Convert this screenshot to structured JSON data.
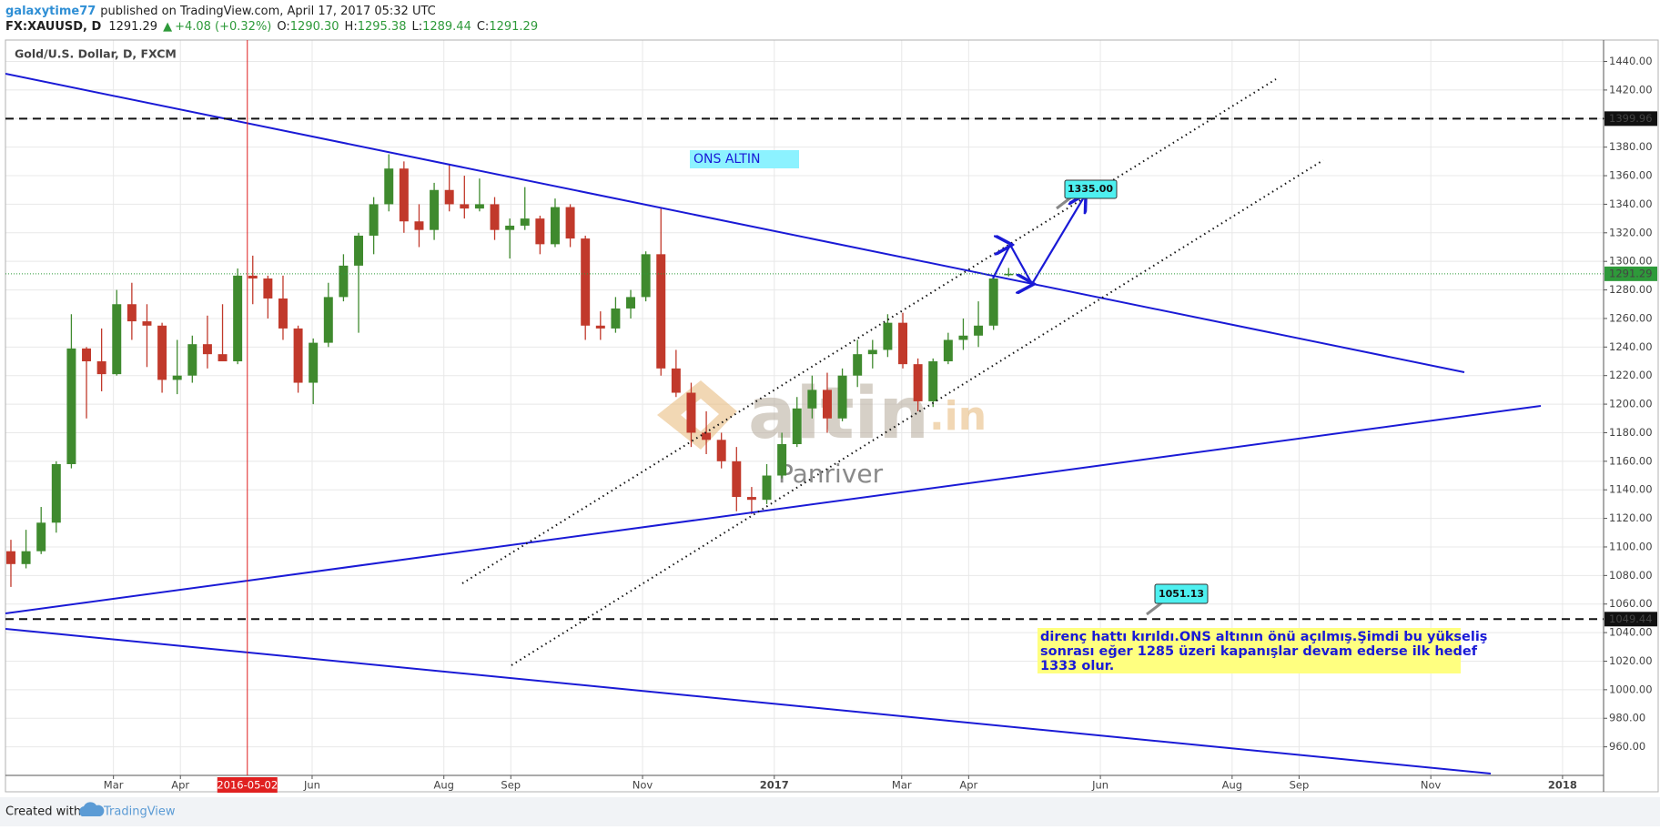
{
  "header": {
    "user": "galaxytime77",
    "published": "published on TradingView.com, April 17, 2017 05:32 UTC",
    "symbol": "FX:XAUUSD, D",
    "last": "1291.29",
    "arrow": "▲",
    "change": "+4.08 (+0.32%)",
    "ohlc": [
      {
        "key": "O:",
        "value": "1290.30"
      },
      {
        "key": "H:",
        "value": "1295.38"
      },
      {
        "key": "L:",
        "value": "1289.44"
      },
      {
        "key": "C:",
        "value": "1291.29"
      }
    ]
  },
  "chart_data": {
    "type": "candlestick",
    "title": "Gold/U.S. Dollar, D, FXCM",
    "x": [
      "2016-01-11",
      "2016-01-18",
      "2016-01-25",
      "2016-02-01",
      "2016-02-08",
      "2016-02-15",
      "2016-02-22",
      "2016-02-29",
      "2016-03-07",
      "2016-03-14",
      "2016-03-21",
      "2016-03-28",
      "2016-04-04",
      "2016-04-11",
      "2016-04-18",
      "2016-04-25",
      "2016-05-02",
      "2016-05-09",
      "2016-05-16",
      "2016-05-23",
      "2016-05-30",
      "2016-06-06",
      "2016-06-13",
      "2016-06-20",
      "2016-06-27",
      "2016-07-04",
      "2016-07-11",
      "2016-07-18",
      "2016-07-25",
      "2016-08-01",
      "2016-08-08",
      "2016-08-15",
      "2016-08-22",
      "2016-08-29",
      "2016-09-05",
      "2016-09-12",
      "2016-09-19",
      "2016-09-26",
      "2016-10-03",
      "2016-10-10",
      "2016-10-17",
      "2016-10-24",
      "2016-10-31",
      "2016-11-07",
      "2016-11-14",
      "2016-11-21",
      "2016-11-28",
      "2016-12-05",
      "2016-12-12",
      "2016-12-19",
      "2016-12-26",
      "2017-01-02",
      "2017-01-09",
      "2017-01-16",
      "2017-01-23",
      "2017-01-30",
      "2017-02-06",
      "2017-02-13",
      "2017-02-20",
      "2017-02-27",
      "2017-03-06",
      "2017-03-13",
      "2017-03-20",
      "2017-03-27",
      "2017-04-03",
      "2017-04-10",
      "2017-04-17"
    ],
    "open": [
      1097,
      1088,
      1097,
      1117,
      1158,
      1239,
      1230,
      1221,
      1270,
      1258,
      1255,
      1217,
      1220,
      1242,
      1235,
      1230,
      1290,
      1288,
      1274,
      1253,
      1215,
      1243,
      1275,
      1297,
      1318,
      1340,
      1365,
      1328,
      1322,
      1350,
      1340,
      1337,
      1340,
      1322,
      1325,
      1330,
      1312,
      1338,
      1316,
      1255,
      1253,
      1267,
      1275,
      1305,
      1225,
      1208,
      1180,
      1175,
      1160,
      1135,
      1133,
      1150,
      1172,
      1197,
      1210,
      1190,
      1220,
      1235,
      1238,
      1257,
      1228,
      1202,
      1230,
      1245,
      1248,
      1255,
      1290.3
    ],
    "high": [
      1105,
      1112,
      1128,
      1160,
      1263,
      1240,
      1253,
      1280,
      1285,
      1270,
      1257,
      1245,
      1248,
      1262,
      1270,
      1295,
      1304,
      1290,
      1290,
      1255,
      1246,
      1285,
      1305,
      1320,
      1345,
      1375,
      1370,
      1340,
      1355,
      1368,
      1360,
      1358,
      1345,
      1330,
      1352,
      1332,
      1344,
      1340,
      1318,
      1265,
      1275,
      1280,
      1307,
      1338,
      1238,
      1215,
      1195,
      1180,
      1170,
      1142,
      1158,
      1180,
      1205,
      1220,
      1222,
      1225,
      1245,
      1245,
      1263,
      1264,
      1232,
      1232,
      1250,
      1260,
      1272,
      1290,
      1295.38
    ],
    "low": [
      1072,
      1085,
      1095,
      1110,
      1155,
      1190,
      1209,
      1220,
      1245,
      1226,
      1208,
      1207,
      1215,
      1225,
      1230,
      1228,
      1270,
      1260,
      1245,
      1208,
      1200,
      1240,
      1272,
      1250,
      1305,
      1335,
      1320,
      1310,
      1315,
      1335,
      1330,
      1335,
      1315,
      1302,
      1322,
      1305,
      1310,
      1310,
      1245,
      1245,
      1250,
      1260,
      1272,
      1220,
      1205,
      1170,
      1165,
      1155,
      1125,
      1123,
      1130,
      1148,
      1170,
      1190,
      1180,
      1188,
      1212,
      1225,
      1233,
      1225,
      1195,
      1198,
      1228,
      1238,
      1240,
      1252,
      1289.44
    ],
    "close": [
      1088,
      1097,
      1117,
      1158,
      1239,
      1230,
      1221,
      1270,
      1258,
      1255,
      1217,
      1220,
      1242,
      1235,
      1230,
      1290,
      1288,
      1274,
      1253,
      1215,
      1243,
      1275,
      1297,
      1318,
      1340,
      1365,
      1328,
      1322,
      1350,
      1340,
      1337,
      1340,
      1322,
      1325,
      1330,
      1312,
      1338,
      1316,
      1255,
      1253,
      1267,
      1275,
      1305,
      1225,
      1208,
      1180,
      1175,
      1160,
      1135,
      1133,
      1150,
      1172,
      1197,
      1210,
      1190,
      1220,
      1235,
      1238,
      1257,
      1228,
      1202,
      1230,
      1245,
      1248,
      1255,
      1288,
      1291.29
    ],
    "up_color": "#3f8a2e",
    "down_color": "#c1392b",
    "xlim": [
      "2016-01-11",
      "2018-01-20"
    ],
    "ylim": [
      940,
      1455
    ],
    "yticks": [
      {
        "value": 960,
        "label": "960.00"
      },
      {
        "value": 980,
        "label": "980.00"
      },
      {
        "value": 1000,
        "label": "1000.00"
      },
      {
        "value": 1020,
        "label": "1020.00"
      },
      {
        "value": 1040,
        "label": "1040.00"
      },
      {
        "value": 1060,
        "label": "1060.00"
      },
      {
        "value": 1080,
        "label": "1080.00"
      },
      {
        "value": 1100,
        "label": "1100.00"
      },
      {
        "value": 1120,
        "label": "1120.00"
      },
      {
        "value": 1140,
        "label": "1140.00"
      },
      {
        "value": 1160,
        "label": "1160.00"
      },
      {
        "value": 1180,
        "label": "1180.00"
      },
      {
        "value": 1200,
        "label": "1200.00"
      },
      {
        "value": 1220,
        "label": "1220.00"
      },
      {
        "value": 1240,
        "label": "1240.00"
      },
      {
        "value": 1260,
        "label": "1260.00"
      },
      {
        "value": 1280,
        "label": "1280.00"
      },
      {
        "value": 1300,
        "label": "1300.00"
      },
      {
        "value": 1320,
        "label": "1320.00"
      },
      {
        "value": 1340,
        "label": "1340.00"
      },
      {
        "value": 1360,
        "label": "1360.00"
      },
      {
        "value": 1380,
        "label": "1380.00"
      },
      {
        "value": 1400,
        "label": "1400.00"
      },
      {
        "value": 1420,
        "label": "1420.00"
      },
      {
        "value": 1440,
        "label": "1440.00"
      }
    ],
    "xticks": [
      {
        "value": "2016-03-01",
        "label": "Mar"
      },
      {
        "value": "2016-04-01",
        "label": "Apr"
      },
      {
        "value": "2016-06-01",
        "label": "Jun"
      },
      {
        "value": "2016-08-01",
        "label": "Aug"
      },
      {
        "value": "2016-09-01",
        "label": "Sep"
      },
      {
        "value": "2016-11-01",
        "label": "Nov"
      },
      {
        "value": "2017-01-01",
        "label": "2017"
      },
      {
        "value": "2017-03-01",
        "label": "Mar"
      },
      {
        "value": "2017-04-01",
        "label": "Apr"
      },
      {
        "value": "2017-06-01",
        "label": "Jun"
      },
      {
        "value": "2017-08-01",
        "label": "Aug"
      },
      {
        "value": "2017-09-01",
        "label": "Sep"
      },
      {
        "value": "2017-11-01",
        "label": "Nov"
      },
      {
        "value": "2018-01-01",
        "label": "2018"
      }
    ],
    "grid": true,
    "hlines": [
      1399.96,
      1049.44
    ],
    "last_price": 1291.29,
    "last_color": "#2e9a3a",
    "marker_date": "2016-05-02",
    "annotations": {
      "ons_altin": "ONS ALTIN",
      "target_1": "1335.00",
      "target_2": "1051.13",
      "note": [
        "direnç hattı kırıldı.ONS altının önü açılmış.Şimdi bu yükseliş",
        "sonrası eğer 1285 üzeri kapanışlar devam ederse ilk hedef",
        "1333 olur."
      ],
      "watermark": "altin",
      "watermark_tld": ".in",
      "author": "Panriver"
    }
  },
  "footer": {
    "created": "Created with",
    "brand": "TradingView"
  }
}
